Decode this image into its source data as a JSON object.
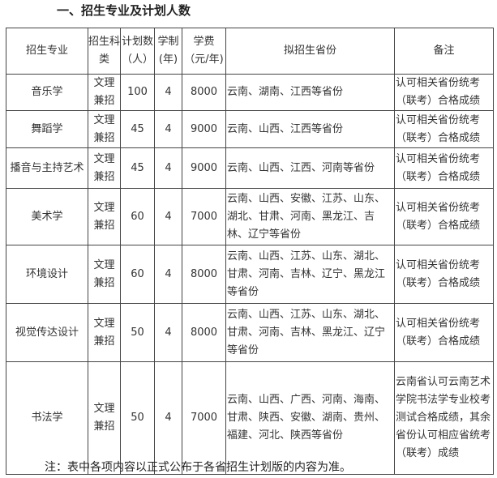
{
  "title": "一、招生专业及计划人数",
  "headers": [
    "招生专业",
    "招生科类",
    "计划数（人）",
    "学制(年)",
    "学费（元/年)",
    "拟招生省份",
    "备注"
  ],
  "rows": [
    {
      "major": "音乐学",
      "category": "文理兼招",
      "plan": "100",
      "years": "4",
      "fee": "8000",
      "provinces": "云南、湖南、江西等省份",
      "remark": "认可相关省份统考（联考）合格成绩"
    },
    {
      "major": "舞蹈学",
      "category": "文理兼招",
      "plan": "45",
      "years": "4",
      "fee": "9000",
      "provinces": "云南、山西、江西等省份",
      "remark": "认可相关省份统考（联考）合格成绩"
    },
    {
      "major": "播音与主持艺术",
      "category": "文理兼招",
      "plan": "45",
      "years": "4",
      "fee": "9000",
      "provinces": "云南、山西、江西、河南等省份",
      "remark": "认可相关省份统考（联考）合格成绩"
    },
    {
      "major": "美术学",
      "category": "文理兼招",
      "plan": "60",
      "years": "4",
      "fee": "7000",
      "provinces": "云南、山西、安徽、江苏、山东、湖北、甘肃、河南、黑龙江、吉林、辽宁等省份",
      "remark": "认可相关省份统考（联考）合格成绩"
    },
    {
      "major": "环境设计",
      "category": "文理兼招",
      "plan": "60",
      "years": "4",
      "fee": "8000",
      "provinces": "云南、山西、江苏、山东、湖北、甘肃、河南、吉林、辽宁、黑龙江等省份",
      "remark": "认可相关省份统考（联考）合格成绩"
    },
    {
      "major": "视觉传达设计",
      "category": "文理兼招",
      "plan": "50",
      "years": "4",
      "fee": "8000",
      "provinces": "云南、山西、江苏、山东、湖北、甘肃、河南、吉林、黑龙江、辽宁等省份",
      "remark": "认可相关省份统考（联考）合格成绩"
    },
    {
      "major": "书法学",
      "category": "文理兼招",
      "plan": "50",
      "years": "4",
      "fee": "7000",
      "provinces": "云南、山西、广西、河南、海南、甘肃、陕西、安徽、湖南、贵州、福建、河北、陕西等省份",
      "remark": "云南省认可云南艺术学院书法学专业校考测试合格成绩，其余省份认可相应省统考（联考）成绩"
    }
  ],
  "footnote": "注：表中各项内容以正式公布于各省招生计划版的内容为准。"
}
